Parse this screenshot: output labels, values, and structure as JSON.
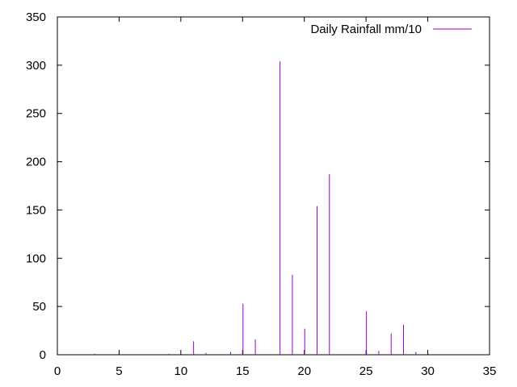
{
  "chart_data": {
    "type": "bar",
    "style": "impulses",
    "xlim": [
      0,
      35
    ],
    "ylim": [
      0,
      350
    ],
    "xticks": [
      0,
      5,
      10,
      15,
      20,
      25,
      30,
      35
    ],
    "yticks": [
      0,
      50,
      100,
      150,
      200,
      250,
      300,
      350
    ],
    "xlabel": "",
    "ylabel": "",
    "grid": false,
    "legend_position": "top-right",
    "series": [
      {
        "name": "Daily Rainfall mm/10",
        "color": "#9400d3",
        "x": [
          3,
          9,
          11,
          12,
          14,
          15,
          16,
          18,
          19,
          20,
          21,
          22,
          25,
          26,
          27,
          28,
          29,
          30
        ],
        "values": [
          1,
          1,
          14,
          2,
          3,
          53,
          16,
          304,
          83,
          27,
          154,
          187,
          45,
          4,
          22,
          31,
          3,
          1
        ]
      }
    ]
  }
}
